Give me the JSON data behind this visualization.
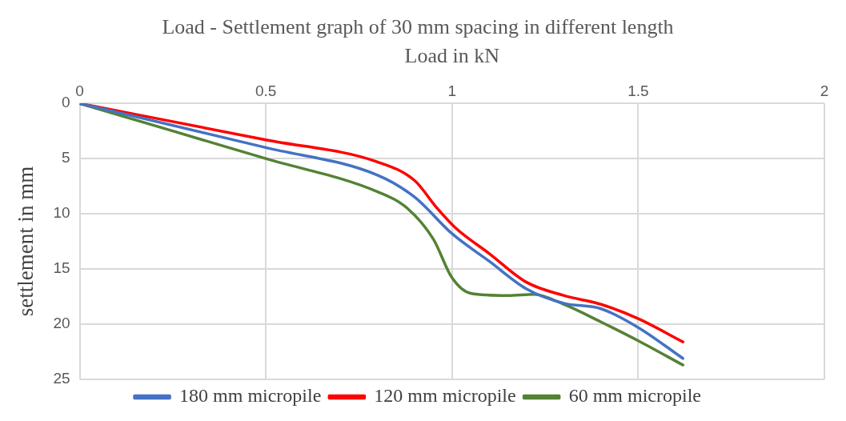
{
  "chart_data": {
    "type": "line",
    "title": "Load - Settlement graph of 30 mm spacing in different length",
    "xlabel": "Load in kN",
    "ylabel": "settlement in mm",
    "xlim": [
      0,
      2
    ],
    "xticks": [
      0,
      0.5,
      1,
      1.5,
      2
    ],
    "ylim": [
      25,
      0
    ],
    "yticks": [
      0,
      5,
      10,
      15,
      20,
      25
    ],
    "grid": true,
    "legend": "bottom",
    "marker": "none",
    "line_style": "solid",
    "series": [
      {
        "name": "180 mm micropile",
        "color": "#4472c4",
        "x": [
          0,
          0.5,
          0.8,
          0.9,
          1.0,
          1.1,
          1.2,
          1.3,
          1.4,
          1.5,
          1.62
        ],
        "values": [
          0,
          4,
          6.5,
          8.5,
          11.8,
          14.3,
          16.8,
          18.1,
          18.6,
          20.3,
          23.1
        ]
      },
      {
        "name": "120 mm micropile",
        "color": "#ff0000",
        "x": [
          0,
          0.5,
          0.8,
          0.9,
          0.96,
          1.01,
          1.1,
          1.2,
          1.3,
          1.4,
          1.5,
          1.62
        ],
        "values": [
          0,
          3.3,
          5.3,
          7,
          9.5,
          11.3,
          13.6,
          16.2,
          17.4,
          18.2,
          19.5,
          21.6
        ]
      },
      {
        "name": "60 mm micropile",
        "color": "#548235",
        "x": [
          0,
          0.5,
          0.8,
          0.88,
          0.95,
          1.0,
          1.05,
          1.15,
          1.22,
          1.3,
          1.4,
          1.5,
          1.62
        ],
        "values": [
          0,
          5,
          8,
          9.5,
          12.3,
          15.8,
          17.2,
          17.4,
          17.3,
          18.2,
          19.8,
          21.5,
          23.7
        ]
      }
    ]
  }
}
